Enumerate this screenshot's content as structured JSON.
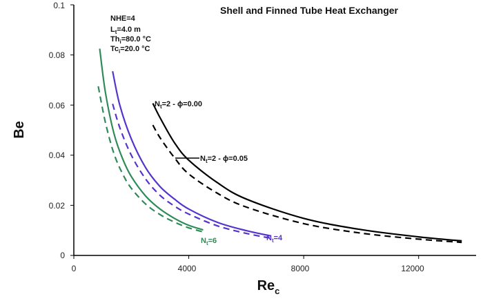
{
  "chart_data": {
    "type": "line",
    "title": "Shell and Finned Tube Heat Exchanger",
    "xlabel": {
      "main": "Re",
      "sub": "c"
    },
    "ylabel": "Be",
    "xlim": [
      0,
      14000
    ],
    "ylim": [
      0,
      0.1
    ],
    "xticks": [
      "0",
      "4000",
      "8000",
      "12000"
    ],
    "yticks": [
      "0",
      "0.02",
      "0.04",
      "0.06",
      "0.08",
      "0.1"
    ],
    "grid": false,
    "parameters": [
      {
        "main": "NHE=4",
        "sub": "",
        "rest": ""
      },
      {
        "main": "L",
        "sub": "t",
        "rest": "=4.0 m"
      },
      {
        "main": "Th",
        "sub": "i",
        "rest": "=80.0 °C"
      },
      {
        "main": "Tc",
        "sub": "i",
        "rest": "=20.0 °C"
      }
    ],
    "series": [
      {
        "key": "nt2-phi0",
        "color": "#000000",
        "dashed": false,
        "x": [
          2750,
          3000,
          3500,
          4000,
          5000,
          6000,
          8000,
          10000,
          12000,
          13500
        ],
        "y": [
          0.0607,
          0.055,
          0.045,
          0.038,
          0.029,
          0.0225,
          0.0148,
          0.0103,
          0.0074,
          0.0058
        ]
      },
      {
        "key": "nt2-phi005",
        "color": "#000000",
        "dashed": true,
        "x": [
          2750,
          3000,
          3500,
          4000,
          5000,
          6000,
          8000,
          10000,
          12000,
          13500
        ],
        "y": [
          0.052,
          0.047,
          0.039,
          0.0325,
          0.0248,
          0.0193,
          0.0127,
          0.0089,
          0.0065,
          0.0052
        ]
      },
      {
        "key": "nt4-phi0",
        "color": "#5533cc",
        "dashed": false,
        "x": [
          1350,
          1600,
          2000,
          2500,
          3000,
          3500,
          4000,
          5000,
          6000,
          6850
        ],
        "y": [
          0.0735,
          0.06,
          0.0465,
          0.035,
          0.0275,
          0.0225,
          0.0185,
          0.0132,
          0.0099,
          0.0078
        ]
      },
      {
        "key": "nt4-phi005",
        "color": "#5533cc",
        "dashed": true,
        "x": [
          1350,
          1600,
          2000,
          2500,
          3000,
          3500,
          4000,
          5000,
          6000,
          6850
        ],
        "y": [
          0.0605,
          0.051,
          0.04,
          0.0305,
          0.024,
          0.0197,
          0.0165,
          0.0118,
          0.0088,
          0.0069
        ]
      },
      {
        "key": "nt6-phi0",
        "color": "#2e8b57",
        "dashed": false,
        "x": [
          900,
          1100,
          1400,
          1700,
          2000,
          2500,
          3000,
          3500,
          4000,
          4500
        ],
        "y": [
          0.0825,
          0.065,
          0.0485,
          0.0385,
          0.0315,
          0.0237,
          0.0185,
          0.0148,
          0.012,
          0.0102
        ]
      },
      {
        "key": "nt6-phi005",
        "color": "#2e8b57",
        "dashed": true,
        "x": [
          850,
          1100,
          1400,
          1700,
          2000,
          2500,
          3000,
          3500,
          4000,
          4500
        ],
        "y": [
          0.0675,
          0.053,
          0.0405,
          0.0325,
          0.0268,
          0.0205,
          0.0163,
          0.0133,
          0.011,
          0.0094
        ]
      }
    ],
    "annotations": [
      {
        "key": "ann-nt2-phi0",
        "color": "#111111",
        "main": "N",
        "sub": "t",
        "rest": "=2 - ϕ=0.00"
      },
      {
        "key": "ann-nt2-phi005",
        "color": "#111111",
        "main": "N",
        "sub": "t",
        "rest": "=2 - ϕ=0.05"
      },
      {
        "key": "ann-nt4",
        "color": "#5533cc",
        "main": "N",
        "sub": "t",
        "rest": "=4"
      },
      {
        "key": "ann-nt6",
        "color": "#2e8b57",
        "main": "N",
        "sub": "t",
        "rest": "=6"
      }
    ]
  }
}
